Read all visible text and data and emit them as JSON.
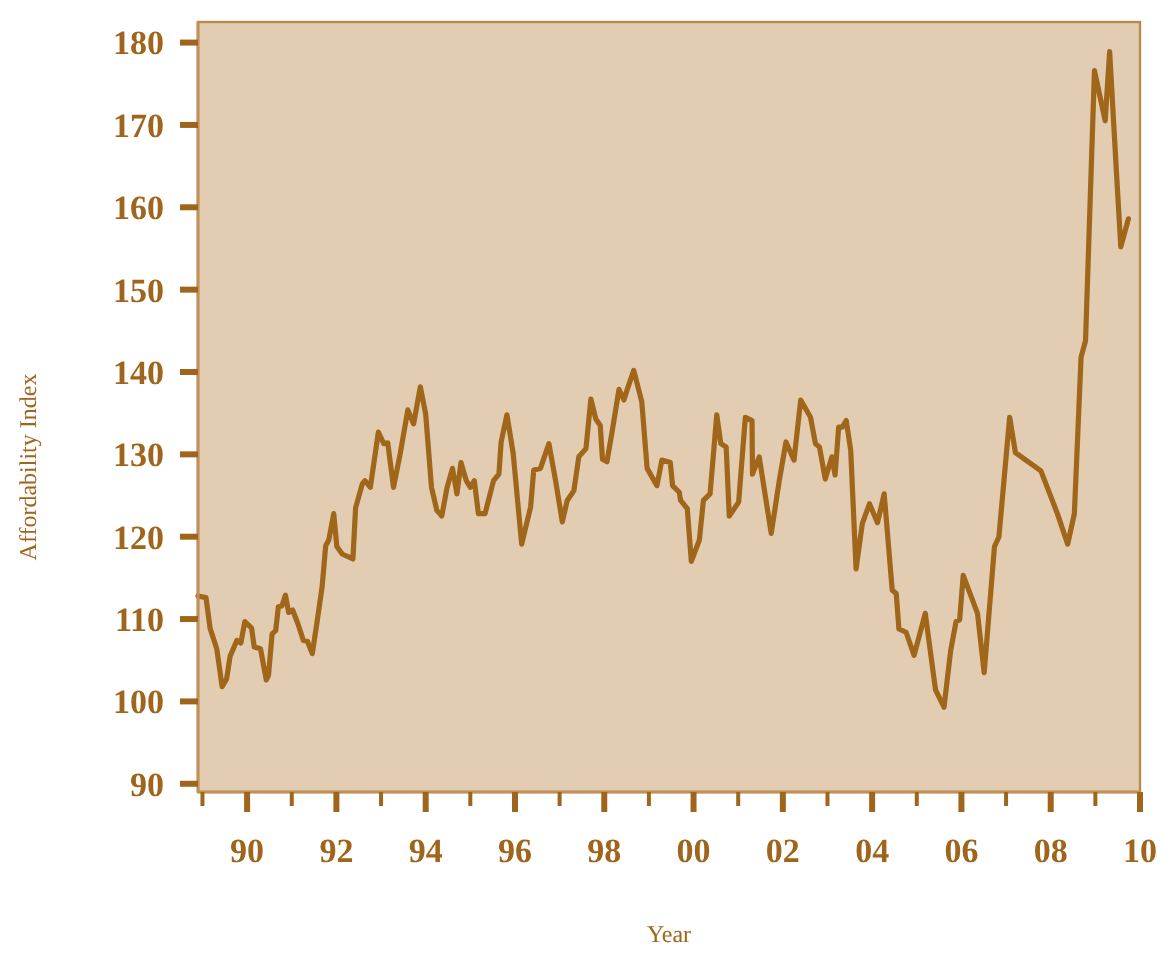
{
  "chart_data": {
    "type": "line",
    "xlabel": "Year",
    "ylabel": "Affordability Index",
    "xlim": [
      1988.9,
      2010
    ],
    "ylim": [
      89,
      182.5
    ],
    "xticks": [
      {
        "value": 1989,
        "label": null
      },
      {
        "value": 1990,
        "label": "90"
      },
      {
        "value": 1991,
        "label": null
      },
      {
        "value": 1992,
        "label": "92"
      },
      {
        "value": 1993,
        "label": null
      },
      {
        "value": 1994,
        "label": "94"
      },
      {
        "value": 1995,
        "label": null
      },
      {
        "value": 1996,
        "label": "96"
      },
      {
        "value": 1997,
        "label": null
      },
      {
        "value": 1998,
        "label": "98"
      },
      {
        "value": 1999,
        "label": null
      },
      {
        "value": 2000,
        "label": "00"
      },
      {
        "value": 2001,
        "label": null
      },
      {
        "value": 2002,
        "label": "02"
      },
      {
        "value": 2003,
        "label": null
      },
      {
        "value": 2004,
        "label": "04"
      },
      {
        "value": 2005,
        "label": null
      },
      {
        "value": 2006,
        "label": "06"
      },
      {
        "value": 2007,
        "label": null
      },
      {
        "value": 2008,
        "label": "08"
      },
      {
        "value": 2009,
        "label": null
      },
      {
        "value": 2010,
        "label": "10"
      }
    ],
    "yticks": [
      90,
      100,
      110,
      120,
      130,
      140,
      150,
      160,
      170,
      180
    ],
    "grid": false,
    "marker": "none",
    "line_style": "solid",
    "series": [
      {
        "color": "#a0661a",
        "x": [
          1988.9,
          1989.08,
          1989.17,
          1989.32,
          1989.44,
          1989.54,
          1989.62,
          1989.77,
          1989.86,
          1989.95,
          1990.1,
          1990.16,
          1990.3,
          1990.43,
          1990.48,
          1990.56,
          1990.64,
          1990.7,
          1990.78,
          1990.86,
          1990.93,
          1991.02,
          1991.14,
          1991.26,
          1991.35,
          1991.46,
          1991.56,
          1991.68,
          1991.76,
          1991.83,
          1991.94,
          1992.01,
          1992.13,
          1992.37,
          1992.43,
          1992.58,
          1992.64,
          1992.76,
          1992.94,
          1993.06,
          1993.15,
          1993.28,
          1993.43,
          1993.6,
          1993.73,
          1993.88,
          1994.0,
          1994.13,
          1994.25,
          1994.36,
          1994.48,
          1994.6,
          1994.7,
          1994.79,
          1994.91,
          1995.0,
          1995.09,
          1995.18,
          1995.33,
          1995.52,
          1995.64,
          1995.69,
          1995.82,
          1995.96,
          1996.15,
          1996.35,
          1996.42,
          1996.57,
          1996.76,
          1996.91,
          1997.06,
          1997.17,
          1997.32,
          1997.43,
          1997.59,
          1997.7,
          1997.81,
          1997.91,
          1997.96,
          1998.06,
          1998.18,
          1998.33,
          1998.44,
          1998.51,
          1998.66,
          1998.84,
          1998.96,
          1999.18,
          1999.29,
          1999.48,
          1999.53,
          1999.68,
          1999.71,
          1999.86,
          1999.95,
          2000.13,
          2000.22,
          2000.37,
          2000.52,
          2000.61,
          2000.73,
          2000.8,
          2001.01,
          2001.16,
          2001.31,
          2001.32,
          2001.47,
          2001.74,
          2001.92,
          2002.07,
          2002.25,
          2002.4,
          2002.62,
          2002.73,
          2002.82,
          2002.95,
          2003.1,
          2003.17,
          2003.25,
          2003.33,
          2003.42,
          2003.52,
          2003.64,
          2003.78,
          2003.94,
          2004.12,
          2004.27,
          2004.45,
          2004.54,
          2004.6,
          2004.76,
          2004.94,
          2005.19,
          2005.42,
          2005.61,
          2005.76,
          2005.88,
          2005.96,
          2006.04,
          2006.36,
          2006.51,
          2006.74,
          2006.84,
          2007.08,
          2007.21,
          2007.78,
          2008.15,
          2008.38,
          2008.53,
          2008.68,
          2008.78,
          2008.98,
          2009.22,
          2009.32,
          2009.47,
          2009.57,
          2009.74
        ],
        "values": [
          112.8,
          112.6,
          108.9,
          106.4,
          101.8,
          102.7,
          105.5,
          107.4,
          107.1,
          109.7,
          108.9,
          106.6,
          106.4,
          102.6,
          103.2,
          108.2,
          108.6,
          111.5,
          111.6,
          112.9,
          110.8,
          111.1,
          109.4,
          107.4,
          107.3,
          105.8,
          109.4,
          113.9,
          118.9,
          119.6,
          122.8,
          118.8,
          117.9,
          117.3,
          123.5,
          126.4,
          126.8,
          126.0,
          132.7,
          131.3,
          131.4,
          126.0,
          130.1,
          135.4,
          133.7,
          138.2,
          134.9,
          126.0,
          123.2,
          122.5,
          126.0,
          128.3,
          125.2,
          129.0,
          126.8,
          126.0,
          126.8,
          122.8,
          122.8,
          126.8,
          127.6,
          131.5,
          134.8,
          130.1,
          119.1,
          123.6,
          128.1,
          128.3,
          131.3,
          126.8,
          121.8,
          124.4,
          125.6,
          129.7,
          130.7,
          136.7,
          134.3,
          133.5,
          129.4,
          129.1,
          132.9,
          137.9,
          136.6,
          137.8,
          140.2,
          136.4,
          128.3,
          126.2,
          129.3,
          129.0,
          126.2,
          125.4,
          124.4,
          123.4,
          117.0,
          119.6,
          124.4,
          125.2,
          134.8,
          131.3,
          130.9,
          122.5,
          124.2,
          134.5,
          134.1,
          127.6,
          129.7,
          120.4,
          126.8,
          131.5,
          129.3,
          136.6,
          134.5,
          131.3,
          130.9,
          127.0,
          129.7,
          127.5,
          133.3,
          133.3,
          134.1,
          130.5,
          116.1,
          121.6,
          124.0,
          121.7,
          125.2,
          113.5,
          113.1,
          108.8,
          108.4,
          105.6,
          110.7,
          101.4,
          99.3,
          106.2,
          109.7,
          109.9,
          115.3,
          110.7,
          103.5,
          118.8,
          120.0,
          134.5,
          130.2,
          128.0,
          122.8,
          119.1,
          122.8,
          141.8,
          143.8,
          176.6,
          170.5,
          178.9,
          164.5,
          155.2,
          158.6
        ]
      }
    ]
  }
}
